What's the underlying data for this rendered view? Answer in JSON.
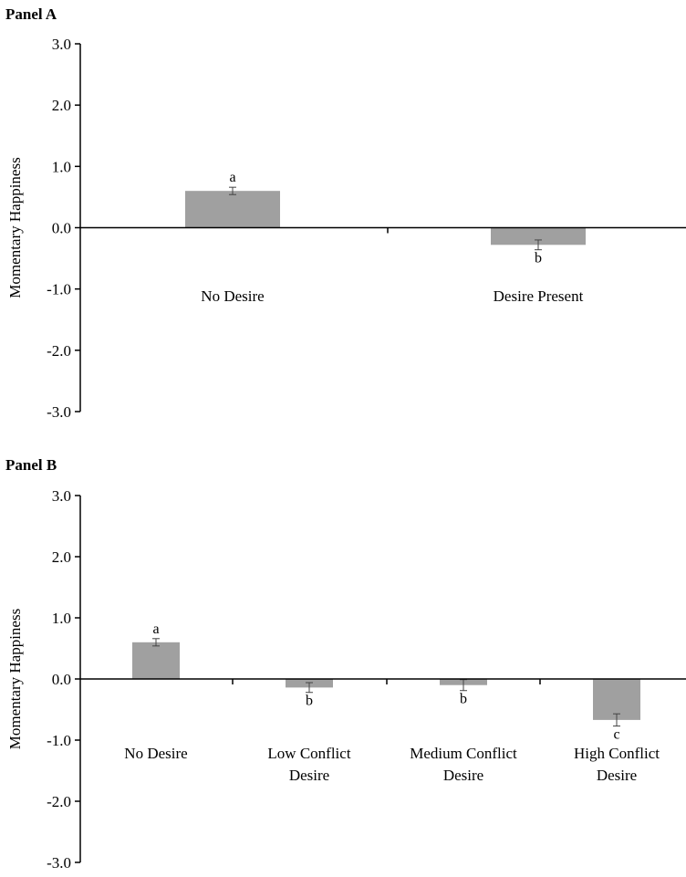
{
  "chart_data": [
    {
      "type": "bar",
      "title": "Panel A",
      "ylabel": "Momentary Happiness",
      "xlabel": "",
      "ylim": [
        -3.0,
        3.0
      ],
      "yticks": [
        "3.0",
        "2.0",
        "1.0",
        "0.0",
        "-1.0",
        "-2.0",
        "-3.0"
      ],
      "ytick_values": [
        3,
        2,
        1,
        0,
        -1,
        -2,
        -3
      ],
      "categories": [
        [
          "No Desire"
        ],
        [
          "Desire Present"
        ]
      ],
      "values": [
        0.6,
        -0.28
      ],
      "errors": [
        0.06,
        0.08
      ],
      "significance_labels": [
        "a",
        "b"
      ],
      "bar_color": "#a0a0a0",
      "grid": false
    },
    {
      "type": "bar",
      "title": "Panel B",
      "ylabel": "Momentary Happiness",
      "xlabel": "",
      "ylim": [
        -3.0,
        3.0
      ],
      "yticks": [
        "3.0",
        "2.0",
        "1.0",
        "0.0",
        "-1.0",
        "-2.0",
        "-3.0"
      ],
      "ytick_values": [
        3,
        2,
        1,
        0,
        -1,
        -2,
        -3
      ],
      "categories": [
        [
          "No Desire"
        ],
        [
          "Low Conflict",
          "Desire"
        ],
        [
          "Medium Conflict",
          "Desire"
        ],
        [
          "High Conflict",
          "Desire"
        ]
      ],
      "values": [
        0.6,
        -0.14,
        -0.1,
        -0.67
      ],
      "errors": [
        0.06,
        0.08,
        0.09,
        0.1
      ],
      "significance_labels": [
        "a",
        "b",
        "b",
        "c"
      ],
      "bar_color": "#a0a0a0",
      "grid": false
    }
  ]
}
